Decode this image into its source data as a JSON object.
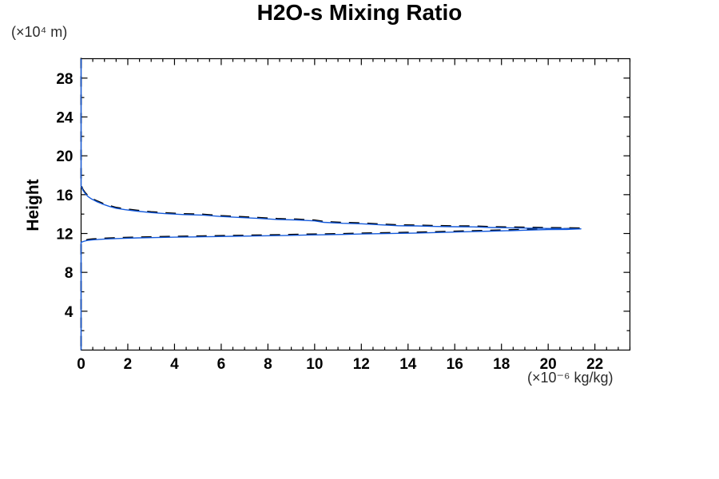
{
  "title": "H2O-s Mixing Ratio",
  "y_axis": {
    "unit_label": "(×10⁴  m)",
    "title": "Height"
  },
  "x_axis": {
    "unit_label": "(×10⁻⁶  kg/kg)"
  },
  "chart_data": {
    "type": "line",
    "title": "H2O-s Mixing Ratio",
    "xlabel": "(×10⁻⁶ kg/kg)",
    "ylabel": "Height (×10⁴ m)",
    "xlim": [
      0,
      23.5
    ],
    "ylim": [
      0,
      30
    ],
    "grid": false,
    "legend": "none",
    "x_major_ticks": [
      0,
      2,
      4,
      6,
      8,
      10,
      12,
      14,
      16,
      18,
      20,
      22
    ],
    "x_minor_step": 0.5,
    "y_major_ticks": [
      4,
      8,
      12,
      16,
      20,
      24,
      28
    ],
    "y_minor_step": 2,
    "frame_color": "#000000",
    "series": [
      {
        "name": "h2o-s-profile-dashed",
        "style": "dashed",
        "color": "#000000",
        "points": [
          [
            0,
            30
          ],
          [
            0,
            16.9
          ],
          [
            0.08,
            16.45
          ],
          [
            0.18,
            16.1
          ],
          [
            0.3,
            15.8
          ],
          [
            0.45,
            15.55
          ],
          [
            0.65,
            15.3
          ],
          [
            0.9,
            15.05
          ],
          [
            1.2,
            14.8
          ],
          [
            1.5,
            14.6
          ],
          [
            1.9,
            14.45
          ],
          [
            2.4,
            14.3
          ],
          [
            3,
            14.15
          ],
          [
            3.6,
            14.05
          ],
          [
            4.4,
            13.95
          ],
          [
            5.2,
            13.9
          ],
          [
            6,
            13.75
          ],
          [
            6.8,
            13.65
          ],
          [
            7.6,
            13.55
          ],
          [
            8.4,
            13.45
          ],
          [
            9.2,
            13.4
          ],
          [
            10,
            13.3
          ],
          [
            10.4,
            13.15
          ],
          [
            11.2,
            13.05
          ],
          [
            12,
            13.0
          ],
          [
            12.8,
            12.9
          ],
          [
            13.6,
            12.8
          ],
          [
            14.4,
            12.78
          ],
          [
            15.2,
            12.72
          ],
          [
            16,
            12.7
          ],
          [
            16.8,
            12.68
          ],
          [
            17.6,
            12.62
          ],
          [
            18.4,
            12.58
          ],
          [
            19.2,
            12.55
          ],
          [
            20,
            12.52
          ],
          [
            20.8,
            12.5
          ],
          [
            21.4,
            12.48
          ],
          [
            20.8,
            12.42
          ],
          [
            20,
            12.4
          ],
          [
            19.2,
            12.35
          ],
          [
            18.4,
            12.3
          ],
          [
            17.6,
            12.25
          ],
          [
            16.8,
            12.2
          ],
          [
            16,
            12.15
          ],
          [
            15.2,
            12.1
          ],
          [
            14.4,
            12.05
          ],
          [
            13.6,
            12.02
          ],
          [
            12.8,
            11.98
          ],
          [
            12,
            11.95
          ],
          [
            11.2,
            11.9
          ],
          [
            10.4,
            11.87
          ],
          [
            9.6,
            11.84
          ],
          [
            8.8,
            11.8
          ],
          [
            8,
            11.77
          ],
          [
            7.2,
            11.74
          ],
          [
            6.4,
            11.71
          ],
          [
            5.6,
            11.68
          ],
          [
            4.8,
            11.65
          ],
          [
            4,
            11.62
          ],
          [
            3.2,
            11.58
          ],
          [
            2.4,
            11.55
          ],
          [
            1.8,
            11.5
          ],
          [
            1.2,
            11.45
          ],
          [
            0.8,
            11.4
          ],
          [
            0.5,
            11.35
          ],
          [
            0.3,
            11.3
          ],
          [
            0.15,
            11.22
          ],
          [
            0,
            11.1
          ],
          [
            0,
            0
          ]
        ]
      },
      {
        "name": "h2o-s-profile-solid",
        "style": "solid",
        "color": "#155bdd",
        "points": [
          [
            0,
            30
          ],
          [
            0,
            16.9
          ],
          [
            0.08,
            16.45
          ],
          [
            0.18,
            16.1
          ],
          [
            0.3,
            15.8
          ],
          [
            0.45,
            15.55
          ],
          [
            0.65,
            15.3
          ],
          [
            0.9,
            15.05
          ],
          [
            1.2,
            14.8
          ],
          [
            1.5,
            14.6
          ],
          [
            1.9,
            14.45
          ],
          [
            2.4,
            14.3
          ],
          [
            3,
            14.15
          ],
          [
            3.6,
            14.05
          ],
          [
            4.4,
            13.95
          ],
          [
            5.2,
            13.9
          ],
          [
            6,
            13.75
          ],
          [
            6.8,
            13.65
          ],
          [
            7.6,
            13.55
          ],
          [
            8.4,
            13.45
          ],
          [
            9.2,
            13.4
          ],
          [
            10,
            13.3
          ],
          [
            10.4,
            13.15
          ],
          [
            11.2,
            13.05
          ],
          [
            12,
            13.0
          ],
          [
            12.8,
            12.9
          ],
          [
            13.6,
            12.8
          ],
          [
            14.4,
            12.78
          ],
          [
            15.2,
            12.72
          ],
          [
            16,
            12.7
          ],
          [
            16.8,
            12.68
          ],
          [
            17.6,
            12.62
          ],
          [
            18.4,
            12.58
          ],
          [
            19.2,
            12.55
          ],
          [
            20,
            12.52
          ],
          [
            20.8,
            12.5
          ],
          [
            21.4,
            12.48
          ],
          [
            20.8,
            12.42
          ],
          [
            20,
            12.4
          ],
          [
            19.2,
            12.35
          ],
          [
            18.4,
            12.3
          ],
          [
            17.6,
            12.25
          ],
          [
            16.8,
            12.2
          ],
          [
            16,
            12.15
          ],
          [
            15.2,
            12.1
          ],
          [
            14.4,
            12.05
          ],
          [
            13.6,
            12.02
          ],
          [
            12.8,
            11.98
          ],
          [
            12,
            11.95
          ],
          [
            11.2,
            11.9
          ],
          [
            10.4,
            11.87
          ],
          [
            9.6,
            11.84
          ],
          [
            8.8,
            11.8
          ],
          [
            8,
            11.77
          ],
          [
            7.2,
            11.74
          ],
          [
            6.4,
            11.71
          ],
          [
            5.6,
            11.68
          ],
          [
            4.8,
            11.65
          ],
          [
            4,
            11.62
          ],
          [
            3.2,
            11.58
          ],
          [
            2.4,
            11.55
          ],
          [
            1.8,
            11.5
          ],
          [
            1.2,
            11.45
          ],
          [
            0.8,
            11.4
          ],
          [
            0.5,
            11.35
          ],
          [
            0.3,
            11.3
          ],
          [
            0.15,
            11.22
          ],
          [
            0,
            11.1
          ],
          [
            0,
            0
          ]
        ]
      }
    ]
  }
}
